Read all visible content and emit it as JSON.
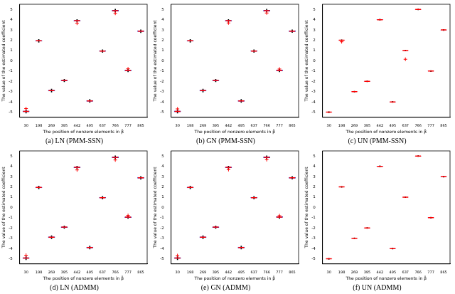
{
  "chart_data": [
    {
      "type": "box",
      "title": "(a) LN (PMM-SSN)",
      "x_label": "The position of nonzero elements in β̂",
      "y_label": "The value of the estimated coefficient",
      "categories": [
        "30",
        "198",
        "269",
        "395",
        "442",
        "495",
        "637",
        "766",
        "777",
        "865"
      ],
      "q1": [
        -5.0,
        1.88,
        -2.97,
        -1.98,
        3.83,
        -3.97,
        0.89,
        4.8,
        -1.01,
        2.81
      ],
      "median": [
        -4.92,
        1.95,
        -2.9,
        -1.92,
        3.9,
        -3.9,
        0.95,
        4.88,
        -0.95,
        2.88
      ],
      "q3": [
        -4.85,
        2.01,
        -2.83,
        -1.86,
        3.96,
        -3.83,
        1.01,
        4.95,
        -0.89,
        2.95
      ],
      "whisker_low": [
        -5.1,
        1.8,
        -3.05,
        -2.05,
        3.75,
        -4.05,
        0.82,
        4.72,
        -1.08,
        2.74
      ],
      "whisker_high": [
        -4.75,
        2.08,
        -2.75,
        -1.8,
        4.03,
        -3.75,
        1.08,
        5.02,
        -0.82,
        3.02
      ],
      "outliers": [
        -4.65,
        null,
        null,
        null,
        3.65,
        null,
        null,
        4.62,
        -0.78,
        null
      ],
      "color": "#4b3fbf",
      "marker": "+",
      "ylim": [
        -5.5,
        5.5
      ],
      "yticks": [
        -5,
        -4,
        -3,
        -2,
        -1,
        0,
        1,
        2,
        3,
        4,
        5
      ],
      "grid": false
    },
    {
      "type": "box",
      "title": "(b) GN (PMM-SSN)",
      "x_label": "The position of nonzero elements in β̂",
      "y_label": "The value of the estimated coefficient",
      "categories": [
        "30",
        "198",
        "269",
        "395",
        "442",
        "495",
        "637",
        "766",
        "777",
        "865"
      ],
      "q1": [
        -5.0,
        1.88,
        -2.97,
        -1.98,
        3.84,
        -3.97,
        0.89,
        4.8,
        -1.0,
        2.82
      ],
      "median": [
        -4.93,
        1.95,
        -2.9,
        -1.92,
        3.9,
        -3.9,
        0.95,
        4.88,
        -0.94,
        2.89
      ],
      "q3": [
        -4.86,
        2.01,
        -2.83,
        -1.86,
        3.96,
        -3.83,
        1.01,
        4.95,
        -0.88,
        2.95
      ],
      "whisker_low": [
        -5.1,
        1.8,
        -3.05,
        -2.05,
        3.76,
        -4.05,
        0.82,
        4.72,
        -1.07,
        2.75
      ],
      "whisker_high": [
        -4.76,
        2.08,
        -2.75,
        -1.8,
        4.03,
        -3.75,
        1.08,
        5.02,
        -0.81,
        3.02
      ],
      "outliers": [
        -4.68,
        null,
        null,
        null,
        3.68,
        null,
        null,
        4.65,
        -0.8,
        null
      ],
      "color": "#4b3fbf",
      "marker": "+",
      "ylim": [
        -5.5,
        5.5
      ],
      "yticks": [
        -5,
        -4,
        -3,
        -2,
        -1,
        0,
        1,
        2,
        3,
        4,
        5
      ],
      "grid": false
    },
    {
      "type": "box",
      "title": "(c) UN (PMM-SSN)",
      "x_label": "The position of nonzero elements in β̂",
      "y_label": "The value of the estimated coefficient",
      "categories": [
        "30",
        "198",
        "269",
        "395",
        "442",
        "495",
        "637",
        "766",
        "777",
        "865"
      ],
      "q1": [
        -5.02,
        1.98,
        -3.02,
        -2.02,
        3.98,
        -4.02,
        0.98,
        4.98,
        -1.02,
        2.98
      ],
      "median": [
        -5,
        2,
        -3,
        -2,
        4,
        -4,
        1,
        5,
        -1,
        3
      ],
      "q3": [
        -4.98,
        2.02,
        -2.98,
        -1.98,
        4.02,
        -3.98,
        1.02,
        5.02,
        -0.98,
        3.02
      ],
      "whisker_low": [
        -5.05,
        1.95,
        -3.05,
        -2.05,
        3.95,
        -4.05,
        0.95,
        4.95,
        -1.05,
        2.95
      ],
      "whisker_high": [
        -4.95,
        2.05,
        -2.95,
        -1.95,
        4.05,
        -3.95,
        1.05,
        5.05,
        -0.95,
        3.05
      ],
      "outliers": [
        null,
        1.85,
        null,
        null,
        null,
        null,
        0.15,
        null,
        null,
        null
      ],
      "color": "#4b3fbf",
      "marker": "+",
      "ylim": [
        -5.5,
        5.5
      ],
      "yticks": [
        -5,
        -4,
        -3,
        -2,
        -1,
        0,
        1,
        2,
        3,
        4,
        5
      ],
      "grid": false
    },
    {
      "type": "box",
      "title": "(d) LN (ADMM)",
      "x_label": "The position of nonzero elements in β̂",
      "y_label": "The value of the estimated coefficient",
      "categories": [
        "30",
        "198",
        "269",
        "395",
        "442",
        "495",
        "637",
        "766",
        "777",
        "865"
      ],
      "q1": [
        -5.0,
        1.88,
        -2.97,
        -1.98,
        3.83,
        -3.97,
        0.89,
        4.8,
        -1.01,
        2.81
      ],
      "median": [
        -4.92,
        1.95,
        -2.9,
        -1.92,
        3.9,
        -3.9,
        0.95,
        4.88,
        -0.95,
        2.88
      ],
      "q3": [
        -4.85,
        2.01,
        -2.83,
        -1.86,
        3.96,
        -3.83,
        1.01,
        4.95,
        -0.89,
        2.95
      ],
      "whisker_low": [
        -5.1,
        1.8,
        -3.05,
        -2.05,
        3.75,
        -4.05,
        0.82,
        4.72,
        -1.08,
        2.74
      ],
      "whisker_high": [
        -4.75,
        2.08,
        -2.75,
        -1.8,
        4.03,
        -3.75,
        1.08,
        5.02,
        -0.82,
        3.02
      ],
      "outliers": [
        -4.65,
        null,
        null,
        null,
        3.65,
        null,
        null,
        4.62,
        -0.78,
        null
      ],
      "color": "#4b3fbf",
      "marker": "+",
      "ylim": [
        -5.5,
        5.5
      ],
      "yticks": [
        -5,
        -4,
        -3,
        -2,
        -1,
        0,
        1,
        2,
        3,
        4,
        5
      ],
      "grid": false
    },
    {
      "type": "box",
      "title": "(e) GN (ADMM)",
      "x_label": "The position of nonzero elements in β̂",
      "y_label": "The value of the estimated coefficient",
      "categories": [
        "30",
        "198",
        "269",
        "395",
        "442",
        "495",
        "637",
        "766",
        "777",
        "865"
      ],
      "q1": [
        -5.0,
        1.88,
        -2.97,
        -1.98,
        3.84,
        -3.97,
        0.89,
        4.8,
        -1.0,
        2.82
      ],
      "median": [
        -4.93,
        1.95,
        -2.9,
        -1.92,
        3.9,
        -3.9,
        0.95,
        4.88,
        -0.94,
        2.89
      ],
      "q3": [
        -4.86,
        2.01,
        -2.83,
        -1.86,
        3.96,
        -3.83,
        1.01,
        4.95,
        -0.88,
        2.95
      ],
      "whisker_low": [
        -5.1,
        1.8,
        -3.05,
        -2.05,
        3.76,
        -4.05,
        0.82,
        4.72,
        -1.07,
        2.75
      ],
      "whisker_high": [
        -4.76,
        2.08,
        -2.75,
        -1.8,
        4.03,
        -3.75,
        1.08,
        5.02,
        -0.81,
        3.02
      ],
      "outliers": [
        -4.68,
        null,
        null,
        null,
        3.68,
        null,
        null,
        4.65,
        -0.8,
        null
      ],
      "color": "#4b3fbf",
      "marker": "+",
      "ylim": [
        -5.5,
        5.5
      ],
      "yticks": [
        -5,
        -4,
        -3,
        -2,
        -1,
        0,
        1,
        2,
        3,
        4,
        5
      ],
      "grid": false
    },
    {
      "type": "box",
      "title": "(f) UN (ADMM)",
      "x_label": "The position of nonzero elements in β̂",
      "y_label": "The value of the estimated coefficient",
      "categories": [
        "30",
        "198",
        "269",
        "395",
        "442",
        "495",
        "637",
        "766",
        "777",
        "865"
      ],
      "q1": [
        -5.02,
        1.98,
        -3.02,
        -2.02,
        3.98,
        -4.02,
        0.98,
        4.98,
        -1.02,
        2.98
      ],
      "median": [
        -5,
        2,
        -3,
        -2,
        4,
        -4,
        1,
        5,
        -1,
        3
      ],
      "q3": [
        -4.98,
        2.02,
        -2.98,
        -1.98,
        4.02,
        -3.98,
        1.02,
        5.02,
        -0.98,
        3.02
      ],
      "whisker_low": [
        -5.05,
        1.95,
        -3.05,
        -2.05,
        3.95,
        -4.05,
        0.95,
        4.95,
        -1.05,
        2.95
      ],
      "whisker_high": [
        -4.95,
        2.05,
        -2.95,
        -1.95,
        4.05,
        -3.95,
        1.05,
        5.05,
        -0.95,
        3.05
      ],
      "outliers": [
        null,
        null,
        null,
        null,
        null,
        null,
        null,
        null,
        null,
        null
      ],
      "color": "#4b3fbf",
      "marker": "+",
      "ylim": [
        -5.5,
        5.5
      ],
      "yticks": [
        -5,
        -4,
        -3,
        -2,
        -1,
        0,
        1,
        2,
        3,
        4,
        5
      ],
      "grid": false
    }
  ]
}
